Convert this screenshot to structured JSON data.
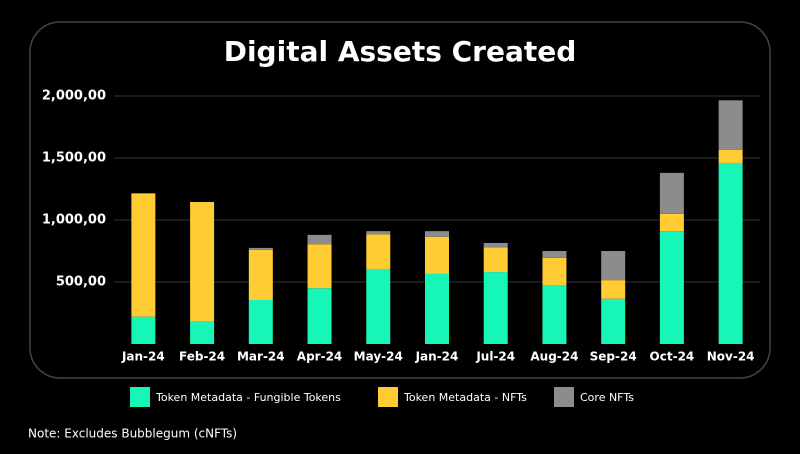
{
  "chart_data": {
    "type": "stacked_bar",
    "title": "Digital Assets Created",
    "categories": [
      "Jan-24",
      "Feb-24",
      "Mar-24",
      "Apr-24",
      "May-24",
      "Jan-24",
      "Jul-24",
      "Aug-24",
      "Sep-24",
      "Oct-24",
      "Nov-24"
    ],
    "series": [
      {
        "name": "Token Metadata - Fungible Tokens",
        "color": "#18f5b8",
        "values": [
          220,
          180,
          355,
          450,
          605,
          565,
          580,
          470,
          365,
          910,
          1460
        ]
      },
      {
        "name": "Token Metadata - NFTs",
        "color": "#ffcc33",
        "values": [
          995,
          965,
          405,
          355,
          280,
          300,
          200,
          225,
          150,
          140,
          105
        ]
      },
      {
        "name": "Core NFTs",
        "color": "#8c8c8c",
        "values": [
          0,
          0,
          15,
          75,
          25,
          45,
          35,
          55,
          235,
          330,
          400
        ]
      }
    ],
    "ylim": [
      0,
      2000
    ],
    "yticks": [
      {
        "value": 500,
        "label": "500,00"
      },
      {
        "value": 1000,
        "label": "1,000,00"
      },
      {
        "value": 1500,
        "label": "1,500,00"
      },
      {
        "value": 2000,
        "label": "2,000,00"
      }
    ],
    "grid": true,
    "note": "Note: Excludes Bubblegum (cNFTs)"
  }
}
